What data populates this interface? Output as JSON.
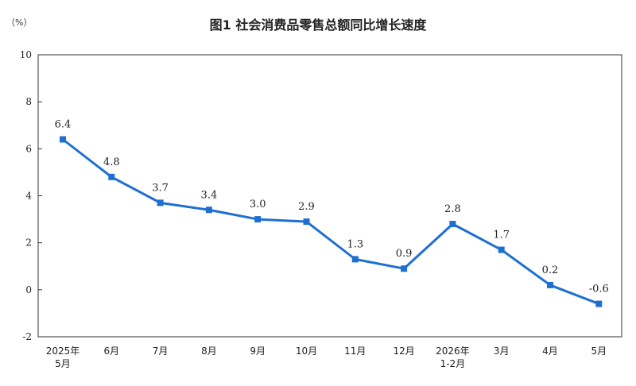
{
  "chart_data": {
    "type": "line",
    "title": "图1  社会消费品零售总额同比增长速度",
    "unit": "（%）",
    "categories": [
      [
        "2025年",
        "5月"
      ],
      [
        "6月"
      ],
      [
        "7月"
      ],
      [
        "8月"
      ],
      [
        "9月"
      ],
      [
        "10月"
      ],
      [
        "11月"
      ],
      [
        "12月"
      ],
      [
        "2026年",
        "1-2月"
      ],
      [
        "3月"
      ],
      [
        "4月"
      ],
      [
        "5月"
      ]
    ],
    "series": [
      {
        "values": [
          6.4,
          4.8,
          3.7,
          3.4,
          3.0,
          2.9,
          1.3,
          0.9,
          2.8,
          1.7,
          0.2,
          -0.6
        ],
        "labels": [
          "6.4",
          "4.8",
          "3.7",
          "3.4",
          "3.0",
          "2.9",
          "1.3",
          "0.9",
          "2.8",
          "1.7",
          "0.2",
          "-0.6"
        ]
      }
    ],
    "ylim": [
      -2,
      10
    ],
    "yticks": [
      -2,
      0,
      2,
      4,
      6,
      8,
      10
    ],
    "grid": false,
    "line_color": "#1f6fd1"
  }
}
